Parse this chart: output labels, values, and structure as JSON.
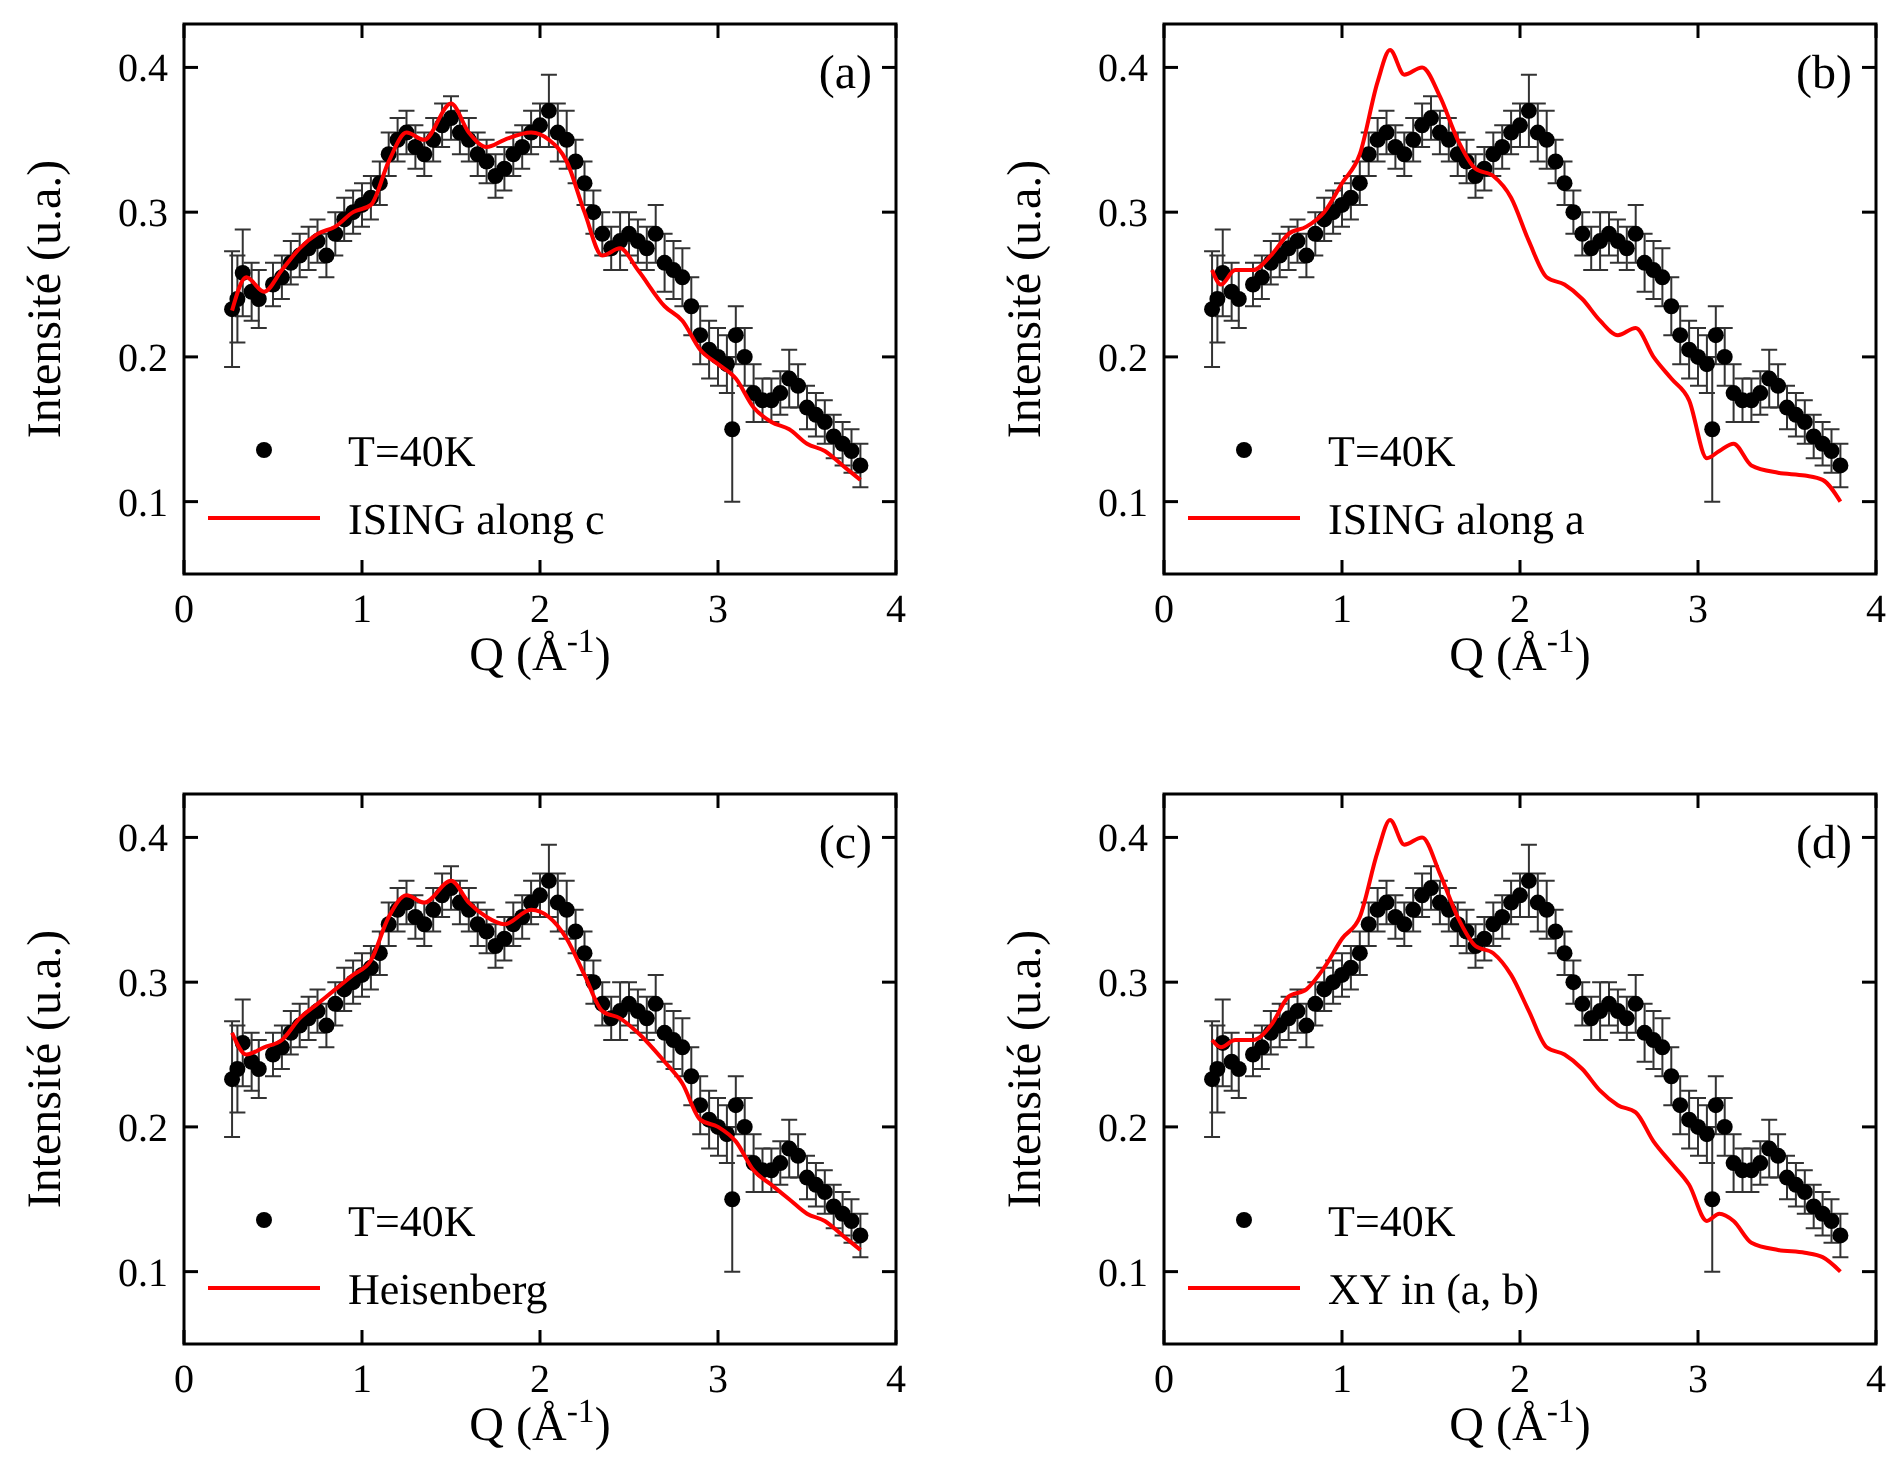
{
  "chart_data": [
    {
      "type": "scatter",
      "xlabel": "Q (Å$^{-1}$)",
      "ylabel": "Intensité (u.a.)",
      "xlim": [
        0,
        4
      ],
      "ylim": [
        0.05,
        0.43
      ],
      "xticks": [
        0,
        1,
        2,
        3,
        4
      ],
      "yticks": [
        0.1,
        0.2,
        0.3,
        0.4
      ],
      "legend": "bottom left",
      "grid": false,
      "annotations": [
        "(a)"
      ],
      "series": [
        {
          "name": "T=40K",
          "type": "scatter",
          "marker": "circle",
          "color": "#000000",
          "x": [
            0.27,
            0.3,
            0.33,
            0.38,
            0.42,
            0.5,
            0.55,
            0.6,
            0.65,
            0.7,
            0.75,
            0.8,
            0.85,
            0.9,
            0.95,
            1.0,
            1.05,
            1.1,
            1.15,
            1.2,
            1.25,
            1.3,
            1.35,
            1.4,
            1.45,
            1.5,
            1.55,
            1.6,
            1.65,
            1.7,
            1.75,
            1.8,
            1.85,
            1.9,
            1.95,
            2.0,
            2.05,
            2.1,
            2.15,
            2.2,
            2.25,
            2.3,
            2.35,
            2.4,
            2.45,
            2.5,
            2.55,
            2.6,
            2.65,
            2.7,
            2.75,
            2.8,
            2.85,
            2.9,
            2.95,
            3.0,
            3.05,
            3.08,
            3.1,
            3.15,
            3.2,
            3.25,
            3.3,
            3.35,
            3.4,
            3.45,
            3.5,
            3.55,
            3.6,
            3.65,
            3.7,
            3.75,
            3.8
          ],
          "values": [
            0.233,
            0.24,
            0.258,
            0.245,
            0.24,
            0.25,
            0.255,
            0.265,
            0.27,
            0.275,
            0.28,
            0.27,
            0.285,
            0.295,
            0.3,
            0.305,
            0.31,
            0.32,
            0.34,
            0.35,
            0.355,
            0.345,
            0.34,
            0.35,
            0.36,
            0.365,
            0.355,
            0.35,
            0.34,
            0.335,
            0.325,
            0.33,
            0.34,
            0.345,
            0.355,
            0.36,
            0.37,
            0.355,
            0.35,
            0.335,
            0.32,
            0.3,
            0.285,
            0.275,
            0.28,
            0.285,
            0.28,
            0.275,
            0.285,
            0.265,
            0.26,
            0.255,
            0.235,
            0.215,
            0.205,
            0.2,
            0.195,
            0.15,
            0.215,
            0.2,
            0.175,
            0.17,
            0.17,
            0.175,
            0.185,
            0.18,
            0.165,
            0.16,
            0.155,
            0.145,
            0.14,
            0.135,
            0.125
          ],
          "errors": [
            0.04,
            0.03,
            0.03,
            0.02,
            0.02,
            0.015,
            0.015,
            0.015,
            0.015,
            0.015,
            0.015,
            0.015,
            0.015,
            0.015,
            0.015,
            0.015,
            0.015,
            0.015,
            0.015,
            0.015,
            0.015,
            0.015,
            0.015,
            0.015,
            0.015,
            0.015,
            0.015,
            0.015,
            0.015,
            0.015,
            0.015,
            0.015,
            0.015,
            0.015,
            0.015,
            0.015,
            0.025,
            0.02,
            0.02,
            0.015,
            0.015,
            0.015,
            0.015,
            0.015,
            0.02,
            0.015,
            0.015,
            0.015,
            0.02,
            0.02,
            0.02,
            0.02,
            0.02,
            0.02,
            0.02,
            0.02,
            0.02,
            0.05,
            0.02,
            0.02,
            0.02,
            0.015,
            0.015,
            0.015,
            0.02,
            0.015,
            0.015,
            0.015,
            0.015,
            0.015,
            0.015,
            0.015,
            0.015
          ]
        },
        {
          "name": "ISING along c",
          "type": "line",
          "line_style": "solid",
          "color": "#ff0000",
          "x": [
            0.27,
            0.35,
            0.45,
            0.55,
            0.65,
            0.75,
            0.85,
            0.95,
            1.05,
            1.15,
            1.25,
            1.35,
            1.5,
            1.6,
            1.7,
            1.8,
            1.95,
            2.05,
            2.15,
            2.25,
            2.35,
            2.45,
            2.55,
            2.7,
            2.8,
            2.9,
            3.0,
            3.1,
            3.2,
            3.3,
            3.4,
            3.5,
            3.6,
            3.7,
            3.8
          ],
          "values": [
            0.232,
            0.255,
            0.245,
            0.26,
            0.275,
            0.285,
            0.29,
            0.3,
            0.305,
            0.335,
            0.355,
            0.35,
            0.375,
            0.355,
            0.345,
            0.35,
            0.355,
            0.35,
            0.335,
            0.3,
            0.27,
            0.275,
            0.26,
            0.235,
            0.225,
            0.205,
            0.195,
            0.185,
            0.165,
            0.155,
            0.15,
            0.14,
            0.135,
            0.125,
            0.115
          ]
        }
      ]
    },
    {
      "type": "scatter",
      "xlabel": "Q (Å$^{-1}$)",
      "ylabel": "Intensité (u.a.)",
      "xlim": [
        0,
        4
      ],
      "ylim": [
        0.05,
        0.43
      ],
      "xticks": [
        0,
        1,
        2,
        3,
        4
      ],
      "yticks": [
        0.1,
        0.2,
        0.3,
        0.4
      ],
      "legend": "bottom left",
      "grid": false,
      "annotations": [
        "(b)"
      ],
      "series": [
        {
          "name": "T=40K",
          "type": "scatter",
          "marker": "circle",
          "color": "#000000",
          "x": [
            0.27,
            0.3,
            0.33,
            0.38,
            0.42,
            0.5,
            0.55,
            0.6,
            0.65,
            0.7,
            0.75,
            0.8,
            0.85,
            0.9,
            0.95,
            1.0,
            1.05,
            1.1,
            1.15,
            1.2,
            1.25,
            1.3,
            1.35,
            1.4,
            1.45,
            1.5,
            1.55,
            1.6,
            1.65,
            1.7,
            1.75,
            1.8,
            1.85,
            1.9,
            1.95,
            2.0,
            2.05,
            2.1,
            2.15,
            2.2,
            2.25,
            2.3,
            2.35,
            2.4,
            2.45,
            2.5,
            2.55,
            2.6,
            2.65,
            2.7,
            2.75,
            2.8,
            2.85,
            2.9,
            2.95,
            3.0,
            3.05,
            3.08,
            3.1,
            3.15,
            3.2,
            3.25,
            3.3,
            3.35,
            3.4,
            3.45,
            3.5,
            3.55,
            3.6,
            3.65,
            3.7,
            3.75,
            3.8
          ],
          "values": [
            0.233,
            0.24,
            0.258,
            0.245,
            0.24,
            0.25,
            0.255,
            0.265,
            0.27,
            0.275,
            0.28,
            0.27,
            0.285,
            0.295,
            0.3,
            0.305,
            0.31,
            0.32,
            0.34,
            0.35,
            0.355,
            0.345,
            0.34,
            0.35,
            0.36,
            0.365,
            0.355,
            0.35,
            0.34,
            0.335,
            0.325,
            0.33,
            0.34,
            0.345,
            0.355,
            0.36,
            0.37,
            0.355,
            0.35,
            0.335,
            0.32,
            0.3,
            0.285,
            0.275,
            0.28,
            0.285,
            0.28,
            0.275,
            0.285,
            0.265,
            0.26,
            0.255,
            0.235,
            0.215,
            0.205,
            0.2,
            0.195,
            0.15,
            0.215,
            0.2,
            0.175,
            0.17,
            0.17,
            0.175,
            0.185,
            0.18,
            0.165,
            0.16,
            0.155,
            0.145,
            0.14,
            0.135,
            0.125
          ],
          "errors": [
            0.04,
            0.03,
            0.03,
            0.02,
            0.02,
            0.015,
            0.015,
            0.015,
            0.015,
            0.015,
            0.015,
            0.015,
            0.015,
            0.015,
            0.015,
            0.015,
            0.015,
            0.015,
            0.015,
            0.015,
            0.015,
            0.015,
            0.015,
            0.015,
            0.015,
            0.015,
            0.015,
            0.015,
            0.015,
            0.015,
            0.015,
            0.015,
            0.015,
            0.015,
            0.015,
            0.015,
            0.025,
            0.02,
            0.02,
            0.015,
            0.015,
            0.015,
            0.015,
            0.015,
            0.02,
            0.015,
            0.015,
            0.015,
            0.02,
            0.02,
            0.02,
            0.02,
            0.02,
            0.02,
            0.02,
            0.02,
            0.02,
            0.05,
            0.02,
            0.02,
            0.02,
            0.015,
            0.015,
            0.015,
            0.02,
            0.015,
            0.015,
            0.015,
            0.015,
            0.015,
            0.015,
            0.015,
            0.015
          ]
        },
        {
          "name": "ISING along a",
          "type": "line",
          "line_style": "solid",
          "color": "#ff0000",
          "x": [
            0.27,
            0.32,
            0.4,
            0.5,
            0.6,
            0.7,
            0.8,
            0.9,
            1.0,
            1.1,
            1.2,
            1.27,
            1.35,
            1.45,
            1.55,
            1.65,
            1.75,
            1.85,
            1.95,
            2.05,
            2.15,
            2.25,
            2.35,
            2.45,
            2.55,
            2.65,
            2.75,
            2.85,
            2.95,
            3.05,
            3.12,
            3.2,
            3.3,
            3.45,
            3.6,
            3.7,
            3.8
          ],
          "values": [
            0.26,
            0.25,
            0.26,
            0.26,
            0.27,
            0.285,
            0.29,
            0.3,
            0.32,
            0.34,
            0.39,
            0.412,
            0.395,
            0.4,
            0.38,
            0.35,
            0.33,
            0.325,
            0.31,
            0.28,
            0.255,
            0.25,
            0.24,
            0.225,
            0.215,
            0.22,
            0.2,
            0.185,
            0.17,
            0.13,
            0.135,
            0.14,
            0.125,
            0.12,
            0.118,
            0.115,
            0.1
          ]
        }
      ]
    },
    {
      "type": "scatter",
      "xlabel": "Q (Å$^{-1}$)",
      "ylabel": "Intensité (u.a.)",
      "xlim": [
        0,
        4
      ],
      "ylim": [
        0.05,
        0.43
      ],
      "xticks": [
        0,
        1,
        2,
        3,
        4
      ],
      "yticks": [
        0.1,
        0.2,
        0.3,
        0.4
      ],
      "legend": "bottom left",
      "grid": false,
      "annotations": [
        "(c)"
      ],
      "series": [
        {
          "name": "T=40K",
          "type": "scatter",
          "marker": "circle",
          "color": "#000000",
          "x": [
            0.27,
            0.3,
            0.33,
            0.38,
            0.42,
            0.5,
            0.55,
            0.6,
            0.65,
            0.7,
            0.75,
            0.8,
            0.85,
            0.9,
            0.95,
            1.0,
            1.05,
            1.1,
            1.15,
            1.2,
            1.25,
            1.3,
            1.35,
            1.4,
            1.45,
            1.5,
            1.55,
            1.6,
            1.65,
            1.7,
            1.75,
            1.8,
            1.85,
            1.9,
            1.95,
            2.0,
            2.05,
            2.1,
            2.15,
            2.2,
            2.25,
            2.3,
            2.35,
            2.4,
            2.45,
            2.5,
            2.55,
            2.6,
            2.65,
            2.7,
            2.75,
            2.8,
            2.85,
            2.9,
            2.95,
            3.0,
            3.05,
            3.08,
            3.1,
            3.15,
            3.2,
            3.25,
            3.3,
            3.35,
            3.4,
            3.45,
            3.5,
            3.55,
            3.6,
            3.65,
            3.7,
            3.75,
            3.8
          ],
          "values": [
            0.233,
            0.24,
            0.258,
            0.245,
            0.24,
            0.25,
            0.255,
            0.265,
            0.27,
            0.275,
            0.28,
            0.27,
            0.285,
            0.295,
            0.3,
            0.305,
            0.31,
            0.32,
            0.34,
            0.35,
            0.355,
            0.345,
            0.34,
            0.35,
            0.36,
            0.365,
            0.355,
            0.35,
            0.34,
            0.335,
            0.325,
            0.33,
            0.34,
            0.345,
            0.355,
            0.36,
            0.37,
            0.355,
            0.35,
            0.335,
            0.32,
            0.3,
            0.285,
            0.275,
            0.28,
            0.285,
            0.28,
            0.275,
            0.285,
            0.265,
            0.26,
            0.255,
            0.235,
            0.215,
            0.205,
            0.2,
            0.195,
            0.15,
            0.215,
            0.2,
            0.175,
            0.17,
            0.17,
            0.175,
            0.185,
            0.18,
            0.165,
            0.16,
            0.155,
            0.145,
            0.14,
            0.135,
            0.125
          ],
          "errors": [
            0.04,
            0.03,
            0.03,
            0.02,
            0.02,
            0.015,
            0.015,
            0.015,
            0.015,
            0.015,
            0.015,
            0.015,
            0.015,
            0.015,
            0.015,
            0.015,
            0.015,
            0.015,
            0.015,
            0.015,
            0.015,
            0.015,
            0.015,
            0.015,
            0.015,
            0.015,
            0.015,
            0.015,
            0.015,
            0.015,
            0.015,
            0.015,
            0.015,
            0.015,
            0.015,
            0.015,
            0.025,
            0.02,
            0.02,
            0.015,
            0.015,
            0.015,
            0.015,
            0.015,
            0.02,
            0.015,
            0.015,
            0.015,
            0.02,
            0.02,
            0.02,
            0.02,
            0.02,
            0.02,
            0.02,
            0.02,
            0.02,
            0.05,
            0.02,
            0.02,
            0.02,
            0.015,
            0.015,
            0.015,
            0.02,
            0.015,
            0.015,
            0.015,
            0.015,
            0.015,
            0.015,
            0.015,
            0.015
          ]
        },
        {
          "name": "Heisenberg",
          "type": "line",
          "line_style": "solid",
          "color": "#ff0000",
          "x": [
            0.27,
            0.35,
            0.45,
            0.55,
            0.65,
            0.75,
            0.85,
            0.95,
            1.05,
            1.15,
            1.25,
            1.35,
            1.5,
            1.6,
            1.7,
            1.8,
            1.95,
            2.05,
            2.15,
            2.25,
            2.35,
            2.45,
            2.55,
            2.7,
            2.8,
            2.9,
            3.0,
            3.1,
            3.2,
            3.3,
            3.4,
            3.5,
            3.6,
            3.7,
            3.8
          ],
          "values": [
            0.265,
            0.25,
            0.255,
            0.26,
            0.275,
            0.285,
            0.295,
            0.305,
            0.315,
            0.345,
            0.36,
            0.355,
            0.37,
            0.355,
            0.345,
            0.34,
            0.35,
            0.345,
            0.33,
            0.305,
            0.28,
            0.275,
            0.265,
            0.245,
            0.23,
            0.205,
            0.2,
            0.19,
            0.17,
            0.16,
            0.15,
            0.14,
            0.135,
            0.125,
            0.115
          ]
        }
      ]
    },
    {
      "type": "scatter",
      "xlabel": "Q (Å$^{-1}$)",
      "ylabel": "Intensité (u.a.)",
      "xlim": [
        0,
        4
      ],
      "ylim": [
        0.05,
        0.43
      ],
      "xticks": [
        0,
        1,
        2,
        3,
        4
      ],
      "yticks": [
        0.1,
        0.2,
        0.3,
        0.4
      ],
      "legend": "bottom left",
      "grid": false,
      "annotations": [
        "(d)"
      ],
      "series": [
        {
          "name": "T=40K",
          "type": "scatter",
          "marker": "circle",
          "color": "#000000",
          "x": [
            0.27,
            0.3,
            0.33,
            0.38,
            0.42,
            0.5,
            0.55,
            0.6,
            0.65,
            0.7,
            0.75,
            0.8,
            0.85,
            0.9,
            0.95,
            1.0,
            1.05,
            1.1,
            1.15,
            1.2,
            1.25,
            1.3,
            1.35,
            1.4,
            1.45,
            1.5,
            1.55,
            1.6,
            1.65,
            1.7,
            1.75,
            1.8,
            1.85,
            1.9,
            1.95,
            2.0,
            2.05,
            2.1,
            2.15,
            2.2,
            2.25,
            2.3,
            2.35,
            2.4,
            2.45,
            2.5,
            2.55,
            2.6,
            2.65,
            2.7,
            2.75,
            2.8,
            2.85,
            2.9,
            2.95,
            3.0,
            3.05,
            3.08,
            3.1,
            3.15,
            3.2,
            3.25,
            3.3,
            3.35,
            3.4,
            3.45,
            3.5,
            3.55,
            3.6,
            3.65,
            3.7,
            3.75,
            3.8
          ],
          "values": [
            0.233,
            0.24,
            0.258,
            0.245,
            0.24,
            0.25,
            0.255,
            0.265,
            0.27,
            0.275,
            0.28,
            0.27,
            0.285,
            0.295,
            0.3,
            0.305,
            0.31,
            0.32,
            0.34,
            0.35,
            0.355,
            0.345,
            0.34,
            0.35,
            0.36,
            0.365,
            0.355,
            0.35,
            0.34,
            0.335,
            0.325,
            0.33,
            0.34,
            0.345,
            0.355,
            0.36,
            0.37,
            0.355,
            0.35,
            0.335,
            0.32,
            0.3,
            0.285,
            0.275,
            0.28,
            0.285,
            0.28,
            0.275,
            0.285,
            0.265,
            0.26,
            0.255,
            0.235,
            0.215,
            0.205,
            0.2,
            0.195,
            0.15,
            0.215,
            0.2,
            0.175,
            0.17,
            0.17,
            0.175,
            0.185,
            0.18,
            0.165,
            0.16,
            0.155,
            0.145,
            0.14,
            0.135,
            0.125
          ],
          "errors": [
            0.04,
            0.03,
            0.03,
            0.02,
            0.02,
            0.015,
            0.015,
            0.015,
            0.015,
            0.015,
            0.015,
            0.015,
            0.015,
            0.015,
            0.015,
            0.015,
            0.015,
            0.015,
            0.015,
            0.015,
            0.015,
            0.015,
            0.015,
            0.015,
            0.015,
            0.015,
            0.015,
            0.015,
            0.015,
            0.015,
            0.015,
            0.015,
            0.015,
            0.015,
            0.015,
            0.015,
            0.025,
            0.02,
            0.02,
            0.015,
            0.015,
            0.015,
            0.015,
            0.015,
            0.02,
            0.015,
            0.015,
            0.015,
            0.02,
            0.02,
            0.02,
            0.02,
            0.02,
            0.02,
            0.02,
            0.02,
            0.02,
            0.05,
            0.02,
            0.02,
            0.02,
            0.015,
            0.015,
            0.015,
            0.02,
            0.015,
            0.015,
            0.015,
            0.015,
            0.015,
            0.015,
            0.015,
            0.015
          ]
        },
        {
          "name": "XY in (a, b)",
          "type": "line",
          "line_style": "solid",
          "color": "#ff0000",
          "x": [
            0.27,
            0.32,
            0.4,
            0.5,
            0.6,
            0.7,
            0.8,
            0.9,
            1.0,
            1.1,
            1.2,
            1.27,
            1.35,
            1.45,
            1.55,
            1.65,
            1.75,
            1.85,
            1.95,
            2.05,
            2.15,
            2.25,
            2.35,
            2.45,
            2.55,
            2.65,
            2.75,
            2.85,
            2.95,
            3.05,
            3.12,
            3.2,
            3.3,
            3.45,
            3.6,
            3.7,
            3.8
          ],
          "values": [
            0.26,
            0.255,
            0.26,
            0.26,
            0.27,
            0.29,
            0.295,
            0.31,
            0.33,
            0.345,
            0.39,
            0.412,
            0.395,
            0.4,
            0.375,
            0.345,
            0.325,
            0.32,
            0.305,
            0.28,
            0.255,
            0.25,
            0.24,
            0.225,
            0.215,
            0.21,
            0.19,
            0.175,
            0.16,
            0.135,
            0.14,
            0.135,
            0.12,
            0.115,
            0.113,
            0.11,
            0.1
          ]
        }
      ]
    }
  ]
}
